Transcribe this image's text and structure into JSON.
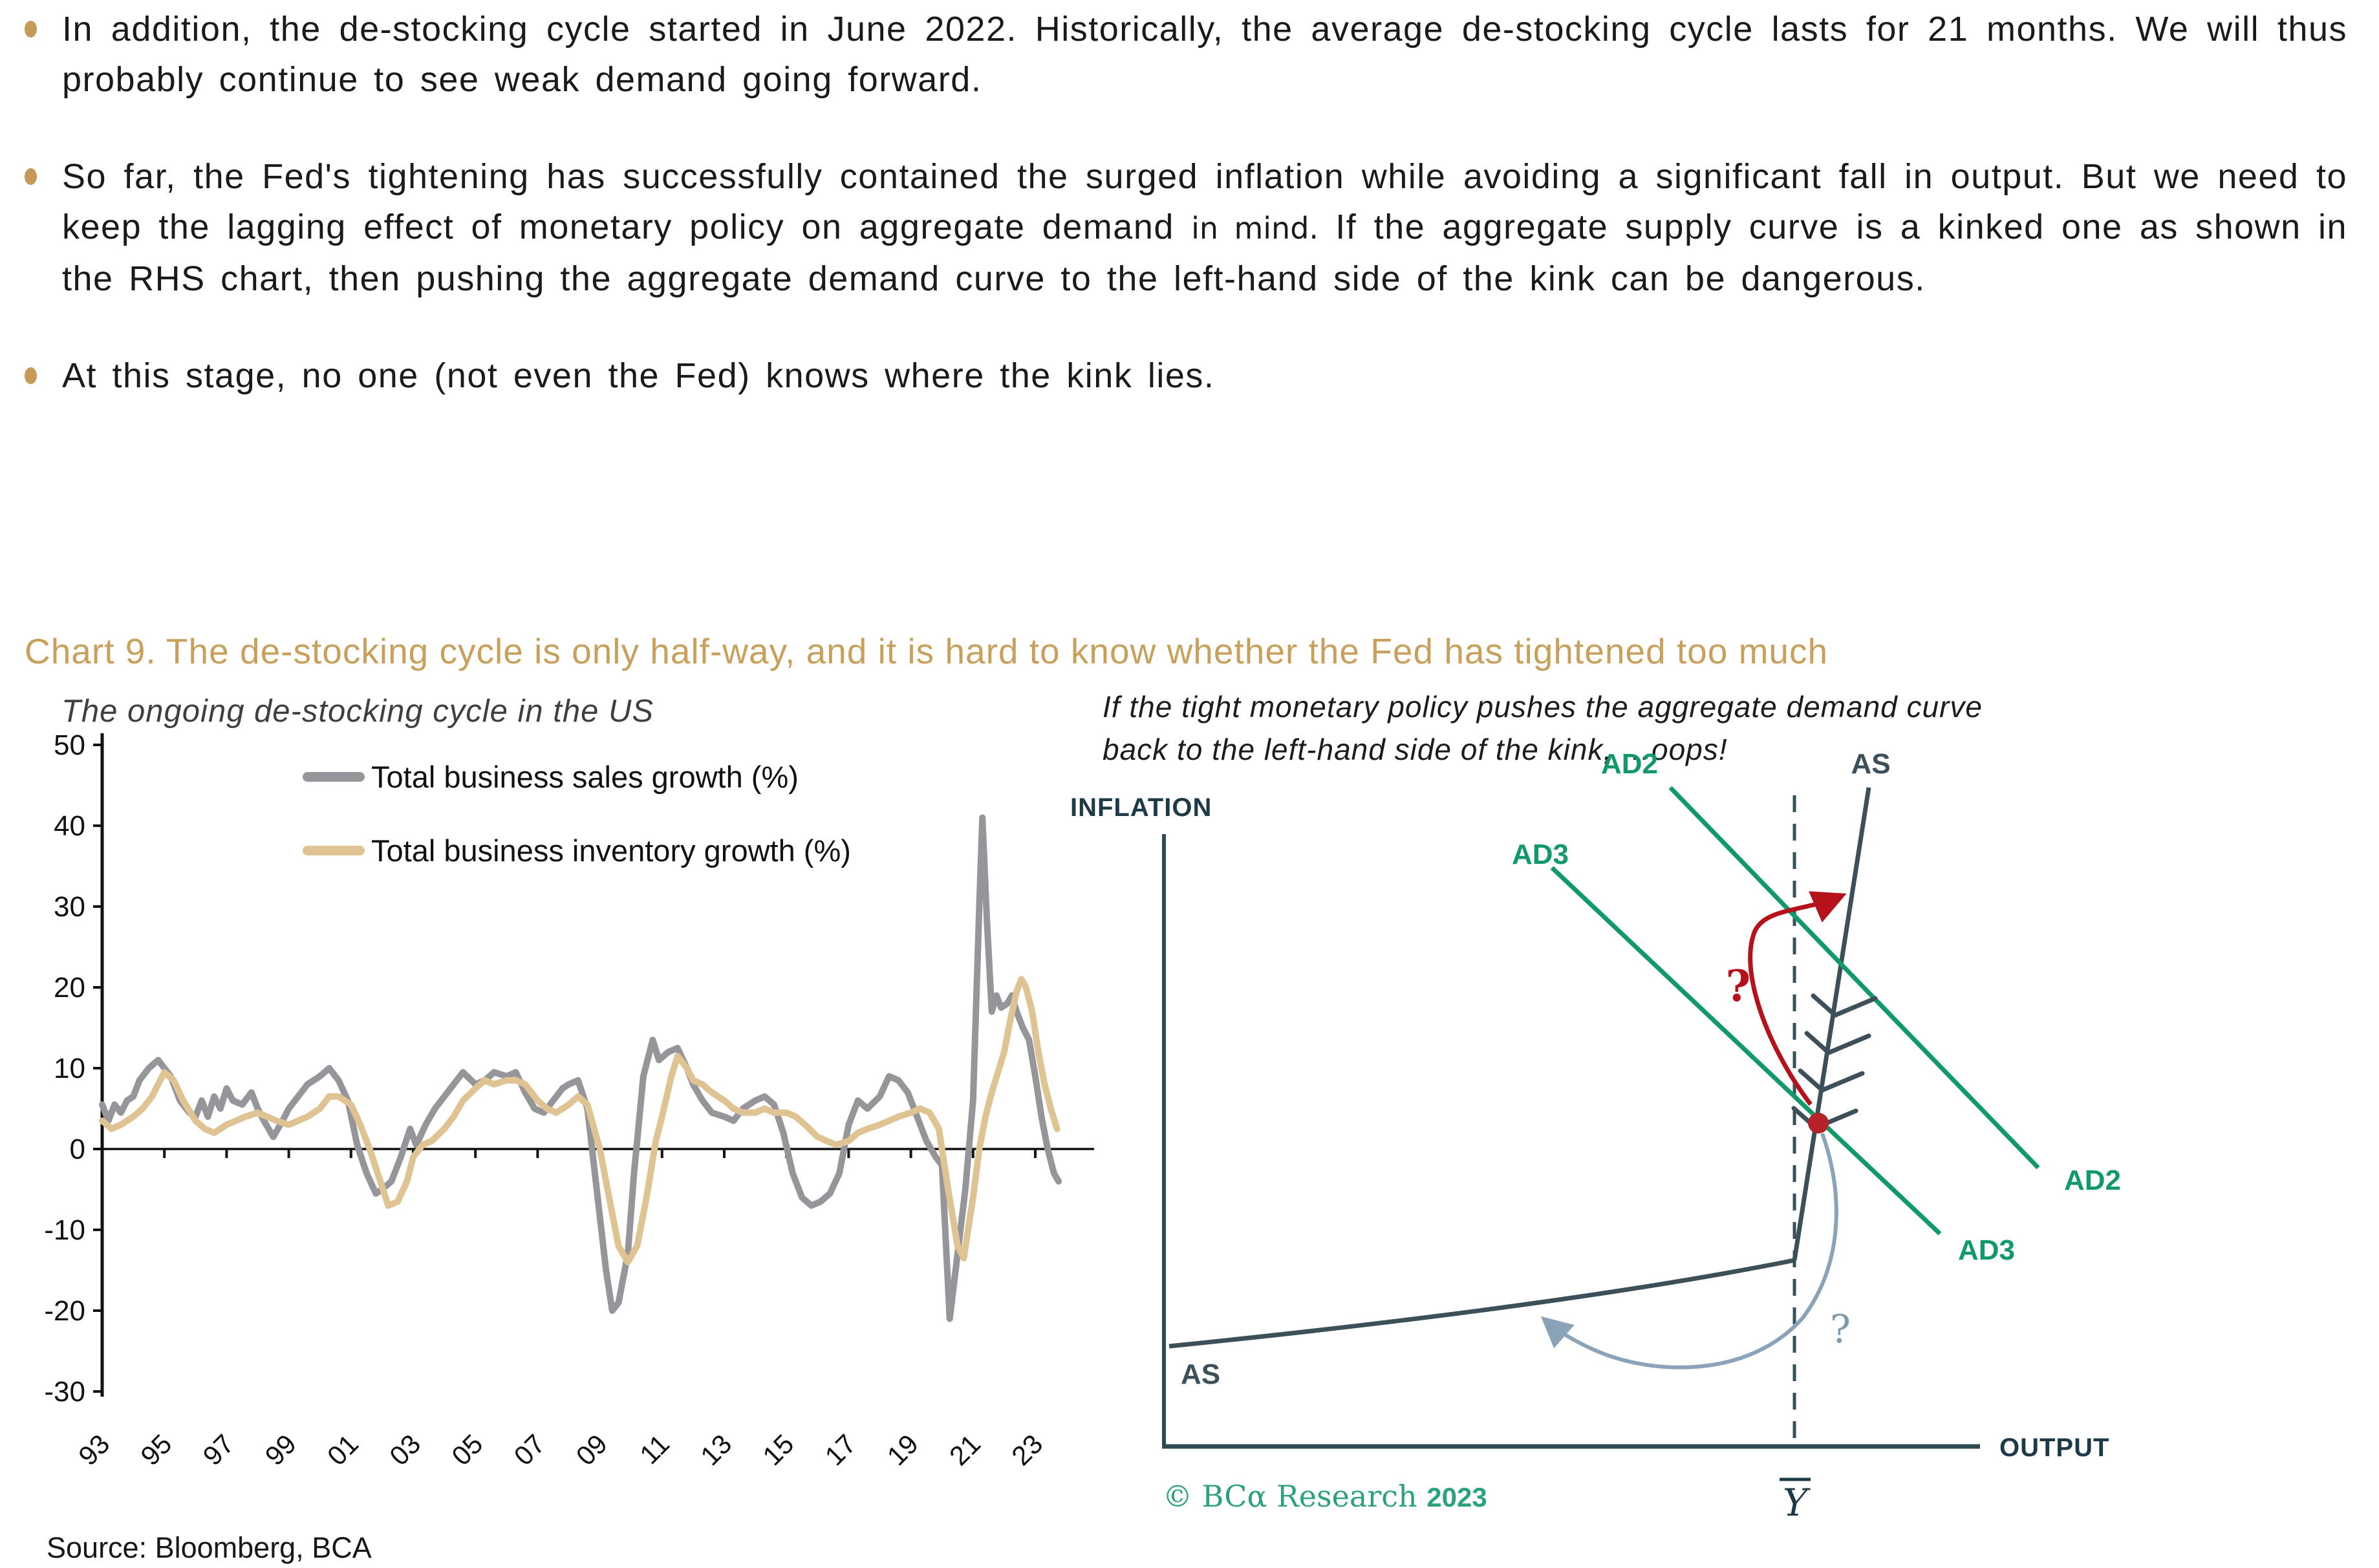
{
  "bullets": {
    "b1": "In addition, the de-stocking cycle started in June 2022. Historically, the average de-stocking cycle lasts for 21 months. We will thus probably continue to see weak demand going forward.",
    "b2_a": "So far, the Fed's tightening has successfully contained the surged inflation while avoiding a significant fall in output. But we need to keep the lagging effect of monetary policy on aggregate demand ",
    "b2_mind": "in mind.",
    "b2_b": " If the aggregate supply curve is a kinked one as shown in the RHS chart, then pushing the aggregate demand curve to the left-hand side of the kink can be dangerous.",
    "b3": "At this stage, no one (not even the Fed) knows where the kink lies."
  },
  "section": {
    "chart_title": "Chart 9. The de-stocking cycle is only half-way, and it is hard to know whether the Fed has tightened too much",
    "left_subtitle": "The ongoing de-stocking cycle in the US",
    "right_subtitle_line1": "If the tight monetary policy pushes the aggregate demand curve",
    "right_subtitle_line2": "back to the left-hand side of the kink, …oops!",
    "source": "Source: Bloomberg, BCA"
  },
  "colors": {
    "gold": "#c9a05b",
    "sales_gray": "#95959a",
    "inventory_tan": "#dfc392",
    "green": "#12996a",
    "slate": "#3d5059",
    "navy": "#1d3a49",
    "red": "#b5121c",
    "steel_blue": "#8ba3b8",
    "copyright_green": "#2ba17d"
  },
  "chart_data": {
    "type": "line",
    "title": "The ongoing de-stocking cycle in the US",
    "xlabel": "",
    "ylabel": "",
    "ylim": [
      -30,
      50
    ],
    "xlim": [
      1993,
      2024
    ],
    "grid": false,
    "legend_position": "top-left-inside",
    "y_ticks": [
      50,
      40,
      30,
      20,
      10,
      0,
      -10,
      -20,
      -30
    ],
    "x_tick_labels": [
      "93",
      "95",
      "97",
      "99",
      "01",
      "03",
      "05",
      "07",
      "09",
      "11",
      "13",
      "15",
      "17",
      "19",
      "21",
      "23"
    ],
    "x_tick_years": [
      1993,
      1995,
      1997,
      1999,
      2001,
      2003,
      2005,
      2007,
      2009,
      2011,
      2013,
      2015,
      2017,
      2019,
      2021,
      2023
    ],
    "series": [
      {
        "name": "Total business sales growth (%)",
        "color": "#95959a",
        "points": [
          [
            1993.0,
            5.5
          ],
          [
            1993.2,
            3.5
          ],
          [
            1993.4,
            5.5
          ],
          [
            1993.6,
            4.5
          ],
          [
            1993.8,
            6
          ],
          [
            1994.0,
            6.5
          ],
          [
            1994.2,
            8.5
          ],
          [
            1994.5,
            10
          ],
          [
            1994.8,
            11
          ],
          [
            1995.0,
            10
          ],
          [
            1995.2,
            9
          ],
          [
            1995.5,
            6
          ],
          [
            1995.8,
            4.5
          ],
          [
            1996.0,
            4
          ],
          [
            1996.2,
            6
          ],
          [
            1996.4,
            4
          ],
          [
            1996.6,
            6.5
          ],
          [
            1996.8,
            5
          ],
          [
            1997.0,
            7.5
          ],
          [
            1997.2,
            6
          ],
          [
            1997.5,
            5.5
          ],
          [
            1997.8,
            7
          ],
          [
            1998.0,
            5
          ],
          [
            1998.2,
            3.5
          ],
          [
            1998.5,
            1.5
          ],
          [
            1998.8,
            3.5
          ],
          [
            1999.0,
            5
          ],
          [
            1999.3,
            6.5
          ],
          [
            1999.6,
            8
          ],
          [
            2000.0,
            9
          ],
          [
            2000.3,
            10
          ],
          [
            2000.6,
            8.5
          ],
          [
            2000.9,
            6
          ],
          [
            2001.2,
            0.5
          ],
          [
            2001.5,
            -3
          ],
          [
            2001.8,
            -5.5
          ],
          [
            2002.0,
            -5
          ],
          [
            2002.3,
            -4
          ],
          [
            2002.6,
            -1
          ],
          [
            2002.9,
            2.5
          ],
          [
            2003.1,
            0.5
          ],
          [
            2003.4,
            3
          ],
          [
            2003.7,
            5
          ],
          [
            2004.0,
            6.5
          ],
          [
            2004.3,
            8
          ],
          [
            2004.6,
            9.5
          ],
          [
            2005.0,
            8
          ],
          [
            2005.3,
            8.5
          ],
          [
            2005.6,
            9.5
          ],
          [
            2006.0,
            9
          ],
          [
            2006.3,
            9.5
          ],
          [
            2006.6,
            7
          ],
          [
            2006.9,
            5
          ],
          [
            2007.2,
            4.5
          ],
          [
            2007.5,
            6
          ],
          [
            2007.8,
            7.5
          ],
          [
            2008.0,
            8
          ],
          [
            2008.3,
            8.5
          ],
          [
            2008.6,
            5
          ],
          [
            2008.9,
            -5
          ],
          [
            2009.2,
            -15
          ],
          [
            2009.4,
            -20
          ],
          [
            2009.6,
            -19
          ],
          [
            2009.9,
            -13
          ],
          [
            2010.1,
            -3
          ],
          [
            2010.4,
            9
          ],
          [
            2010.7,
            13.5
          ],
          [
            2010.9,
            11
          ],
          [
            2011.2,
            12
          ],
          [
            2011.5,
            12.5
          ],
          [
            2011.8,
            10
          ],
          [
            2012.0,
            8
          ],
          [
            2012.3,
            6
          ],
          [
            2012.6,
            4.5
          ],
          [
            2013.0,
            4
          ],
          [
            2013.3,
            3.5
          ],
          [
            2013.6,
            5
          ],
          [
            2014.0,
            6
          ],
          [
            2014.3,
            6.5
          ],
          [
            2014.6,
            5.5
          ],
          [
            2014.9,
            2
          ],
          [
            2015.2,
            -3
          ],
          [
            2015.5,
            -6
          ],
          [
            2015.8,
            -7
          ],
          [
            2016.1,
            -6.5
          ],
          [
            2016.4,
            -5.5
          ],
          [
            2016.7,
            -3
          ],
          [
            2017.0,
            3
          ],
          [
            2017.3,
            6
          ],
          [
            2017.6,
            5
          ],
          [
            2018.0,
            6.5
          ],
          [
            2018.3,
            9
          ],
          [
            2018.6,
            8.5
          ],
          [
            2018.9,
            7
          ],
          [
            2019.2,
            4
          ],
          [
            2019.5,
            1
          ],
          [
            2019.8,
            -1
          ],
          [
            2020.0,
            -2
          ],
          [
            2020.25,
            -21
          ],
          [
            2020.5,
            -13
          ],
          [
            2020.75,
            -5
          ],
          [
            2021.0,
            6
          ],
          [
            2021.2,
            30
          ],
          [
            2021.3,
            41
          ],
          [
            2021.45,
            28
          ],
          [
            2021.6,
            17
          ],
          [
            2021.75,
            19
          ],
          [
            2021.9,
            17.5
          ],
          [
            2022.1,
            18
          ],
          [
            2022.25,
            19
          ],
          [
            2022.4,
            17
          ],
          [
            2022.6,
            15
          ],
          [
            2022.8,
            13.5
          ],
          [
            2023.0,
            9
          ],
          [
            2023.2,
            4
          ],
          [
            2023.4,
            0
          ],
          [
            2023.6,
            -3
          ],
          [
            2023.75,
            -4
          ]
        ]
      },
      {
        "name": "Total business inventory growth (%)",
        "color": "#dfc392",
        "points": [
          [
            1993.0,
            3.5
          ],
          [
            1993.3,
            2.5
          ],
          [
            1993.6,
            3
          ],
          [
            1994.0,
            4
          ],
          [
            1994.3,
            5
          ],
          [
            1994.6,
            6.5
          ],
          [
            1995.0,
            9.5
          ],
          [
            1995.3,
            8.5
          ],
          [
            1995.6,
            6
          ],
          [
            1996.0,
            3.5
          ],
          [
            1996.3,
            2.5
          ],
          [
            1996.6,
            2
          ],
          [
            1997.0,
            3
          ],
          [
            1997.3,
            3.5
          ],
          [
            1997.6,
            4
          ],
          [
            1998.0,
            4.5
          ],
          [
            1998.3,
            4
          ],
          [
            1998.6,
            3.5
          ],
          [
            1999.0,
            3
          ],
          [
            1999.3,
            3.5
          ],
          [
            1999.6,
            4
          ],
          [
            2000.0,
            5
          ],
          [
            2000.3,
            6.5
          ],
          [
            2000.6,
            6.5
          ],
          [
            2001.0,
            5.5
          ],
          [
            2001.3,
            3
          ],
          [
            2001.6,
            0
          ],
          [
            2001.9,
            -3.5
          ],
          [
            2002.2,
            -7
          ],
          [
            2002.5,
            -6.5
          ],
          [
            2002.8,
            -4
          ],
          [
            2003.0,
            -1
          ],
          [
            2003.3,
            0.5
          ],
          [
            2003.6,
            1
          ],
          [
            2004.0,
            2.5
          ],
          [
            2004.3,
            4
          ],
          [
            2004.6,
            6
          ],
          [
            2005.0,
            7.5
          ],
          [
            2005.3,
            8.5
          ],
          [
            2005.6,
            8
          ],
          [
            2006.0,
            8.5
          ],
          [
            2006.3,
            8.5
          ],
          [
            2006.6,
            8
          ],
          [
            2007.0,
            6
          ],
          [
            2007.3,
            5
          ],
          [
            2007.6,
            4.5
          ],
          [
            2008.0,
            5.5
          ],
          [
            2008.3,
            6.5
          ],
          [
            2008.6,
            5.5
          ],
          [
            2009.0,
            0
          ],
          [
            2009.3,
            -6
          ],
          [
            2009.6,
            -12
          ],
          [
            2009.9,
            -14
          ],
          [
            2010.2,
            -12
          ],
          [
            2010.5,
            -6
          ],
          [
            2010.8,
            1
          ],
          [
            2011.0,
            4
          ],
          [
            2011.3,
            9
          ],
          [
            2011.5,
            11.5
          ],
          [
            2011.8,
            10
          ],
          [
            2012.0,
            8.5
          ],
          [
            2012.3,
            8
          ],
          [
            2012.6,
            7
          ],
          [
            2013.0,
            6
          ],
          [
            2013.3,
            5
          ],
          [
            2013.6,
            4.5
          ],
          [
            2014.0,
            4.5
          ],
          [
            2014.3,
            5
          ],
          [
            2014.6,
            4.5
          ],
          [
            2015.0,
            4.5
          ],
          [
            2015.3,
            4
          ],
          [
            2015.6,
            3
          ],
          [
            2016.0,
            1.5
          ],
          [
            2016.3,
            1
          ],
          [
            2016.6,
            0.5
          ],
          [
            2017.0,
            1
          ],
          [
            2017.3,
            2
          ],
          [
            2017.6,
            2.5
          ],
          [
            2018.0,
            3
          ],
          [
            2018.3,
            3.5
          ],
          [
            2018.6,
            4
          ],
          [
            2019.0,
            4.5
          ],
          [
            2019.3,
            5
          ],
          [
            2019.6,
            4.5
          ],
          [
            2019.9,
            2.5
          ],
          [
            2020.2,
            -5
          ],
          [
            2020.5,
            -12
          ],
          [
            2020.7,
            -13.5
          ],
          [
            2021.0,
            -6
          ],
          [
            2021.2,
            0
          ],
          [
            2021.4,
            4
          ],
          [
            2021.6,
            7
          ],
          [
            2021.8,
            9.5
          ],
          [
            2022.0,
            12
          ],
          [
            2022.2,
            16
          ],
          [
            2022.4,
            19.5
          ],
          [
            2022.55,
            21
          ],
          [
            2022.7,
            20
          ],
          [
            2022.9,
            17
          ],
          [
            2023.1,
            12
          ],
          [
            2023.3,
            8
          ],
          [
            2023.5,
            5
          ],
          [
            2023.7,
            2.5
          ]
        ]
      }
    ]
  },
  "right_diagram": {
    "inflation_label": "INFLATION",
    "output_label": "OUTPUT",
    "as_top_label": "AS",
    "as_bottom_label": "AS",
    "ad2_top_label": "AD2",
    "ad2_end_label": "AD2",
    "ad3_top_label": "AD3",
    "ad3_end_label": "AD3",
    "red_question": "?",
    "blue_question": "?",
    "ybar_label": "Y",
    "copyright_brand": "© BCα Research ",
    "copyright_year": "2023"
  }
}
